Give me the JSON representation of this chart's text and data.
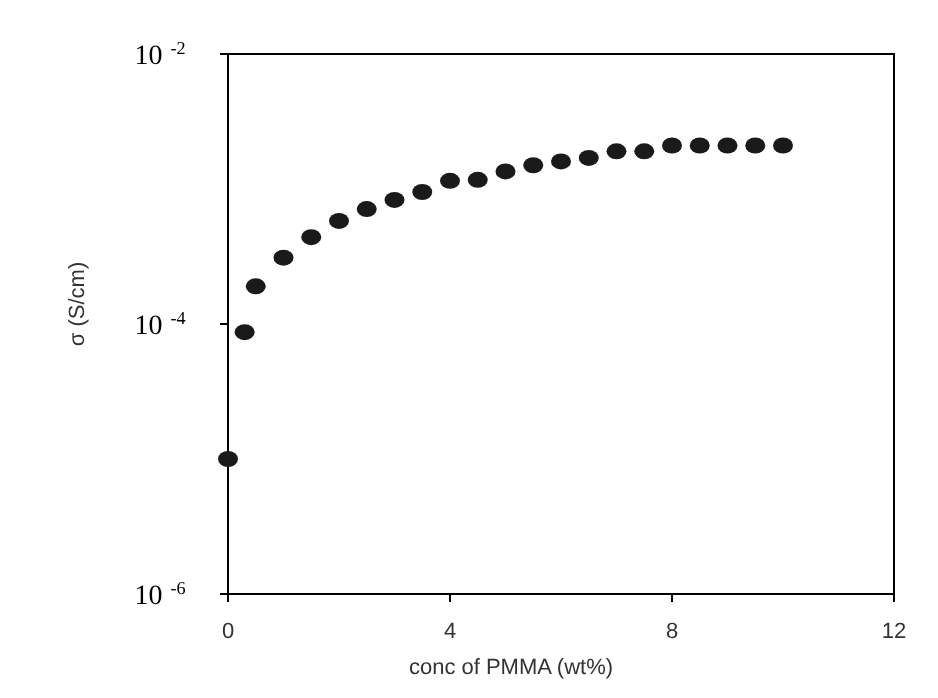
{
  "chart_data": {
    "type": "scatter",
    "xlabel": "conc of PMMA (wt%)",
    "ylabel": "σ (S/cm)",
    "log": "y",
    "xlim": [
      0,
      12
    ],
    "xticks": [
      0,
      4,
      8,
      12
    ],
    "ylim": [
      1e-06,
      0.01
    ],
    "yticks": [
      {
        "value": 1e-06,
        "label": "10$^{-6}$"
      },
      {
        "value": 0.0001,
        "label": "10$^{-4}$"
      },
      {
        "value": 0.01,
        "label": "10$^{-2}$"
      }
    ],
    "marker": "circle",
    "series": [
      {
        "color": "#1a1a1a",
        "x": [
          0,
          0.3,
          0.5,
          1,
          1.5,
          2,
          2.5,
          3,
          3.5,
          4,
          4.5,
          5,
          5.5,
          6,
          6.5,
          7,
          7.5,
          8,
          8.5,
          9,
          9.5,
          10
        ],
        "values": [
          1e-05,
          8.7e-05,
          0.00019,
          0.00031,
          0.00044,
          0.00058,
          0.00071,
          0.00083,
          0.00095,
          0.00115,
          0.00117,
          0.00135,
          0.0015,
          0.0016,
          0.0017,
          0.0019,
          0.0019,
          0.0021,
          0.0021,
          0.0021,
          0.0021,
          0.0021
        ]
      }
    ]
  }
}
